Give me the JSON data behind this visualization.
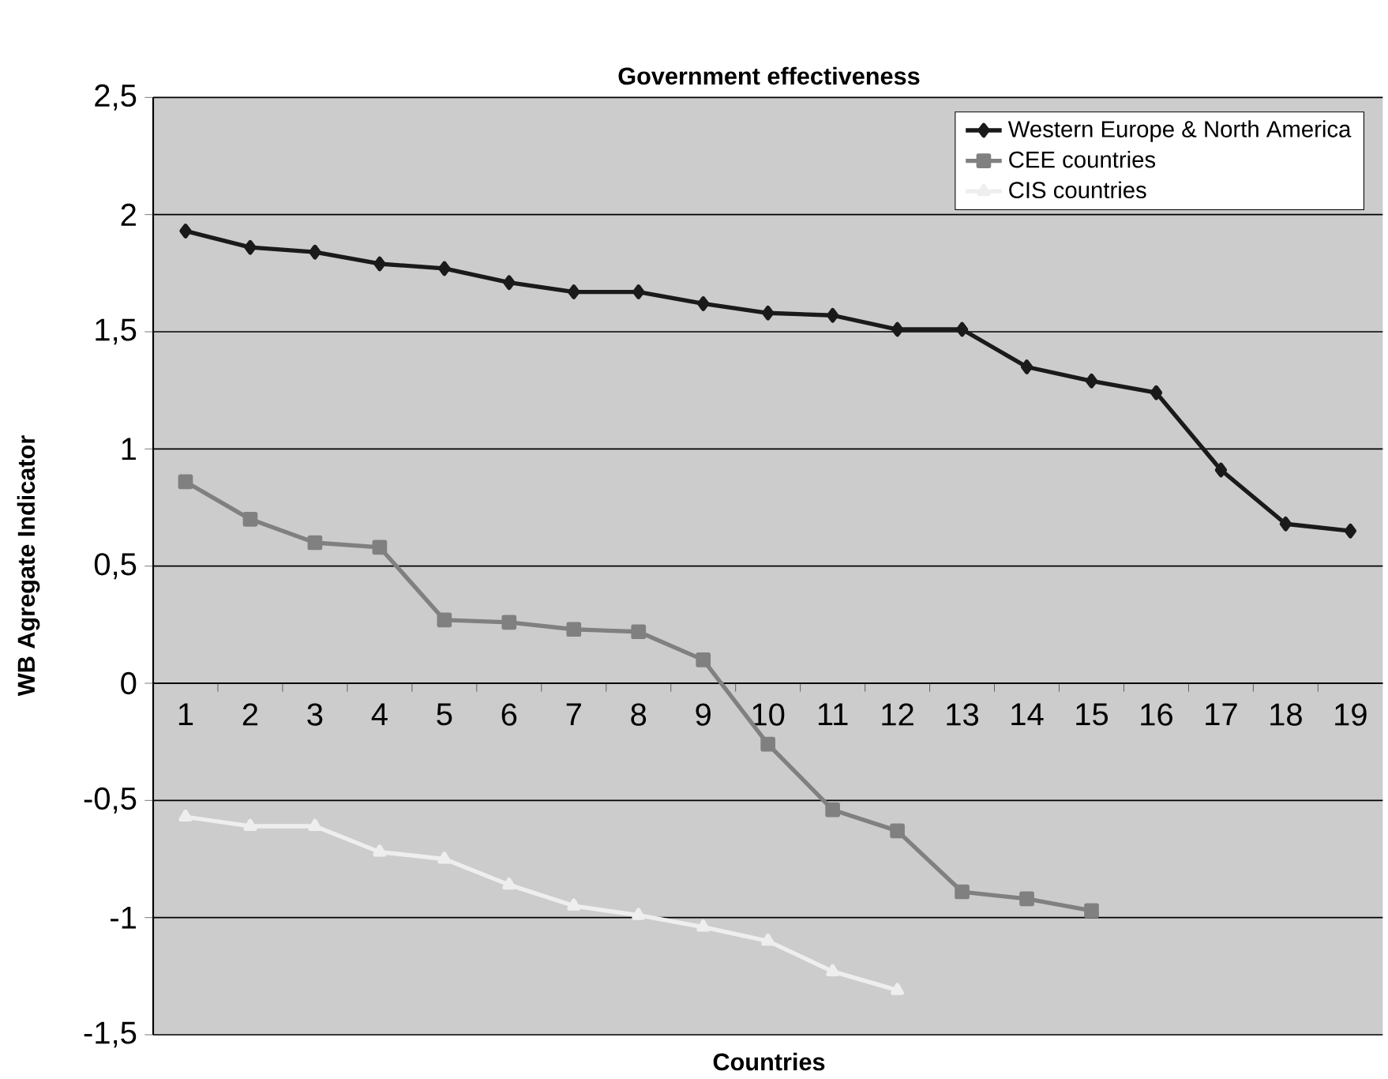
{
  "chart_data": {
    "type": "line",
    "title": "Government effectiveness",
    "xlabel": "Countries",
    "ylabel": "WB Agregate  Indicator",
    "categories": [
      "1",
      "2",
      "3",
      "4",
      "5",
      "6",
      "7",
      "8",
      "9",
      "10",
      "11",
      "12",
      "13",
      "14",
      "15",
      "16",
      "17",
      "18",
      "19"
    ],
    "series": [
      {
        "name": "Western Europe & North America",
        "color": "#1a1a1a",
        "marker": "diamond",
        "values": [
          1.93,
          1.86,
          1.84,
          1.79,
          1.77,
          1.71,
          1.67,
          1.67,
          1.62,
          1.58,
          1.57,
          1.51,
          1.51,
          1.35,
          1.29,
          1.24,
          0.91,
          0.68,
          0.65
        ]
      },
      {
        "name": "CEE countries",
        "color": "#808080",
        "marker": "square",
        "values": [
          0.86,
          0.7,
          0.6,
          0.58,
          0.27,
          0.26,
          0.23,
          0.22,
          0.1,
          -0.26,
          -0.54,
          -0.63,
          -0.89,
          -0.92,
          -0.97,
          null,
          null,
          null,
          null
        ]
      },
      {
        "name": "CIS countries",
        "color": "#eeeeee",
        "marker": "triangle",
        "values": [
          -0.57,
          -0.61,
          -0.61,
          -0.72,
          -0.75,
          -0.86,
          -0.95,
          -0.99,
          -1.04,
          -1.1,
          -1.23,
          -1.31,
          null,
          null,
          null,
          null,
          null,
          null,
          null
        ]
      }
    ],
    "ylim": [
      -1.5,
      2.5
    ],
    "yticks": [
      {
        "value": -1.5,
        "label": "-1,5"
      },
      {
        "value": -1,
        "label": "-1"
      },
      {
        "value": -0.5,
        "label": "-0,5"
      },
      {
        "value": 0,
        "label": "0"
      },
      {
        "value": 0.5,
        "label": "0,5"
      },
      {
        "value": 1,
        "label": "1"
      },
      {
        "value": 1.5,
        "label": "1,5"
      },
      {
        "value": 2,
        "label": "2"
      },
      {
        "value": 2.5,
        "label": "2,5"
      }
    ],
    "grid": "y",
    "legend": "top right",
    "line_style": "solid"
  }
}
